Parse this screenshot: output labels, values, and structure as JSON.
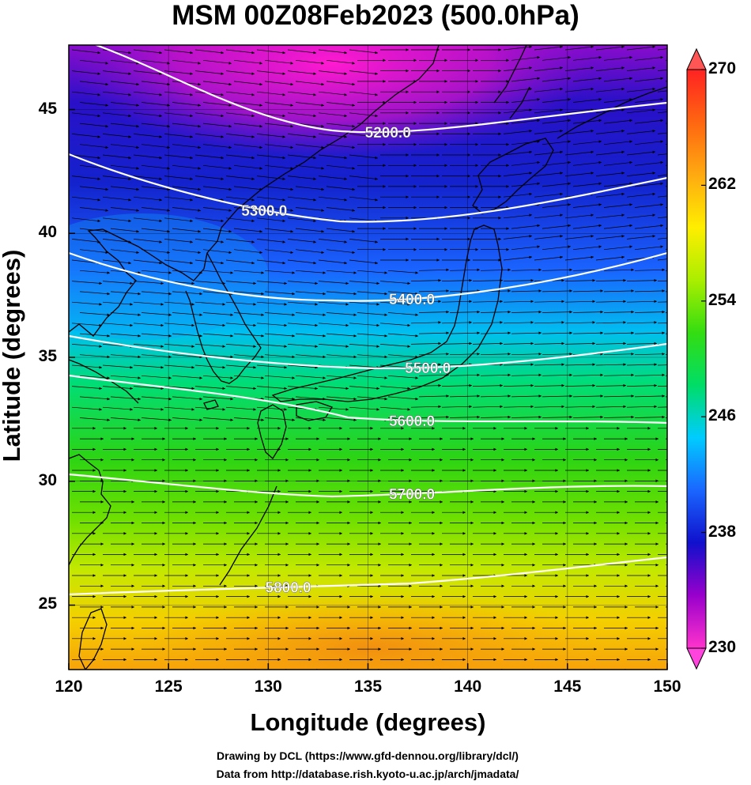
{
  "title": "MSM 00Z08Feb2023 (500.0hPa)",
  "axes": {
    "xlabel": "Longitude (degrees)",
    "ylabel": "Latitude  (degrees)",
    "x_ticks": [
      "120",
      "125",
      "130",
      "135",
      "140",
      "145",
      "150"
    ],
    "y_ticks": [
      "25",
      "30",
      "35",
      "40",
      "45"
    ],
    "xlim": [
      120,
      150
    ],
    "ylim": [
      22.4,
      47.6
    ]
  },
  "colorbar": {
    "ticks": [
      "230",
      "238",
      "246",
      "254",
      "262",
      "270"
    ],
    "range": [
      230,
      270
    ],
    "colors": [
      "#ff33cc",
      "#9900cc",
      "#1010cc",
      "#1a66ff",
      "#00ccff",
      "#00dd66",
      "#33dd11",
      "#aaee00",
      "#ffee00",
      "#ffaa11",
      "#ff6611",
      "#ff2222"
    ]
  },
  "contours": [
    {
      "label": "5200.0",
      "lon": 136.0
    },
    {
      "label": "5300.0",
      "lon": 129.8
    },
    {
      "label": "5400.0",
      "lon": 137.2
    },
    {
      "label": "5500.0",
      "lon": 138.0
    },
    {
      "label": "5600.0",
      "lon": 137.2
    },
    {
      "label": "5700.0",
      "lon": 137.2
    },
    {
      "label": "5800.0",
      "lon": 131.0
    }
  ],
  "credits": {
    "line1": "Drawing by DCL (https://www.gfd-dennou.org/library/dcl/)",
    "line2": "Data from http://database.rish.kyoto-u.ac.jp/arch/jmadata/"
  }
}
